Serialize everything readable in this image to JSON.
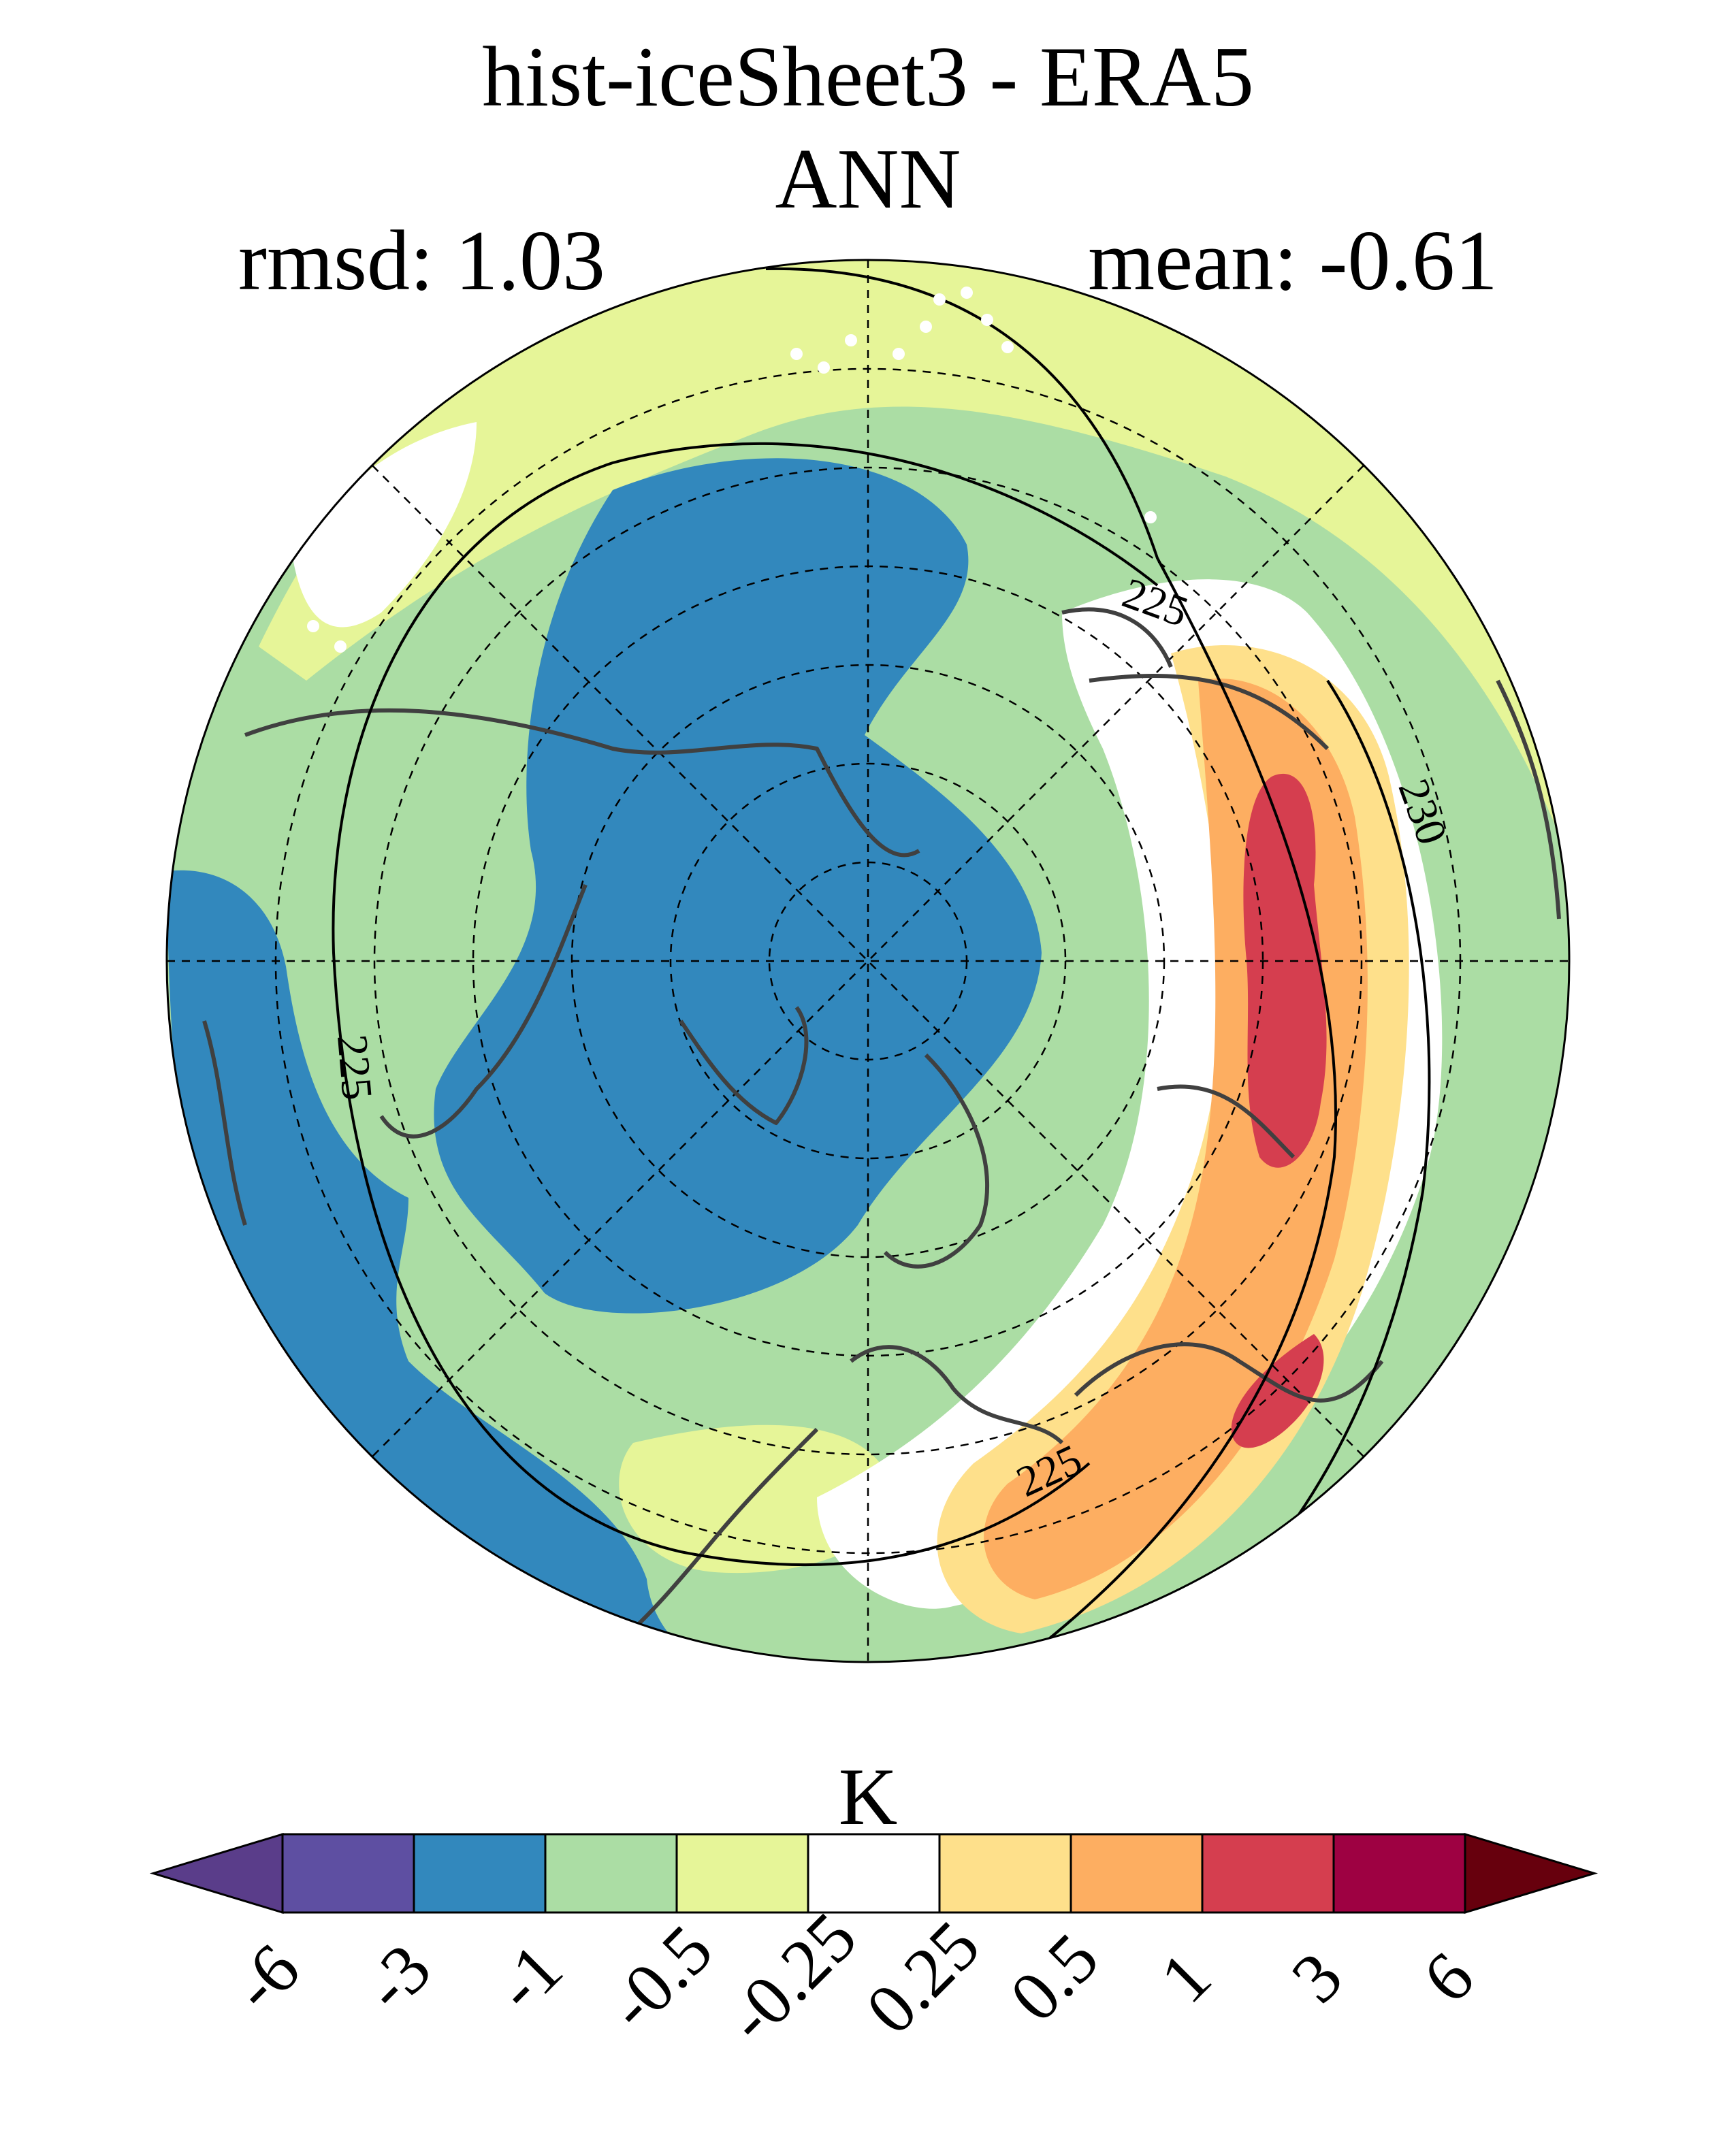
{
  "title": {
    "line1": "hist-iceSheet3 - ERA5",
    "line2": "ANN"
  },
  "stats": {
    "rmsd": "rmsd: 1.03",
    "mean": "mean: -0.61"
  },
  "map": {
    "projection": "north polar stereographic",
    "contour_labels": [
      "225",
      "225",
      "225",
      "230"
    ]
  },
  "colorbar": {
    "unit": "K",
    "ticks": [
      "-6",
      "-3",
      "-1",
      "-0.5",
      "-0.25",
      "0.25",
      "0.5",
      "1",
      "3",
      "6"
    ],
    "colors": [
      "#5a3d8a",
      "#5e4fa2",
      "#3288bd",
      "#abdda4",
      "#e6f598",
      "#ffffff",
      "#fee08b",
      "#fdae61",
      "#d53e4f",
      "#9e0142",
      "#67000d"
    ]
  }
}
